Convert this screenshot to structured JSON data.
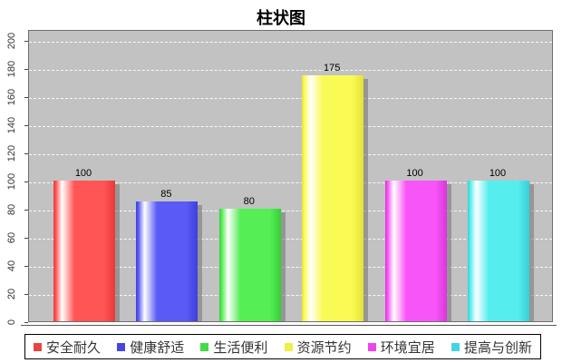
{
  "title": "柱状图",
  "chart_data": {
    "type": "bar",
    "title": "柱状图",
    "categories": [
      "安全耐久",
      "健康舒适",
      "生活便利",
      "资源节约",
      "环境宜居",
      "提高与创新"
    ],
    "values": [
      100,
      85,
      80,
      175,
      100,
      100
    ],
    "value_labels": [
      "100",
      "85",
      "80",
      "175",
      "100",
      "100"
    ],
    "xlabel": "",
    "ylabel": "",
    "ylim": [
      0,
      208
    ],
    "yticks": [
      0,
      20,
      40,
      60,
      80,
      100,
      120,
      140,
      160,
      180,
      200
    ],
    "ytick_labels": [
      "0",
      "20",
      "40",
      "60",
      "80",
      "100",
      "120",
      "140",
      "160",
      "180",
      "200"
    ],
    "grid": "horizontal-white-dashed",
    "legend_position": "bottom",
    "plot_background": "#c2c2c2",
    "series_colors": [
      {
        "name": "安全耐久",
        "base": "#ff5555",
        "dark": "#ea3838",
        "legend": "#e84444"
      },
      {
        "name": "健康舒适",
        "base": "#5a5af6",
        "dark": "#3e3ede",
        "legend": "#4747df"
      },
      {
        "name": "生活便利",
        "base": "#55ee55",
        "dark": "#36cf36",
        "legend": "#44dd44"
      },
      {
        "name": "资源节约",
        "base": "#fafa55",
        "dark": "#e2e238",
        "legend": "#efef44"
      },
      {
        "name": "环境宜居",
        "base": "#f755f7",
        "dark": "#da35da",
        "legend": "#ee44ee"
      },
      {
        "name": "提高与创新",
        "base": "#55eded",
        "dark": "#36cfd6",
        "legend": "#44d4ea"
      }
    ]
  }
}
